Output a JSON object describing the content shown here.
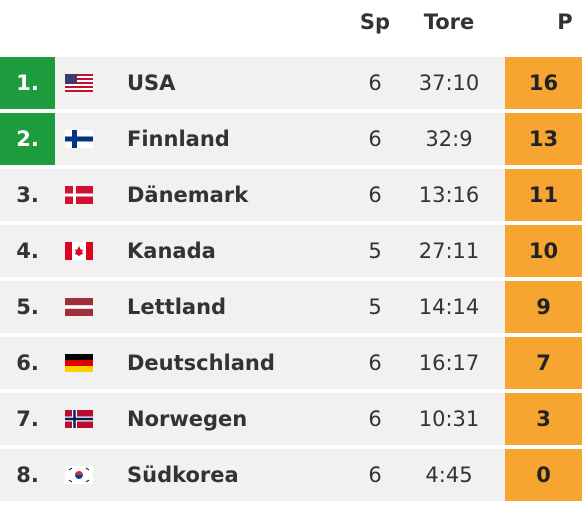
{
  "header": {
    "sp": "Sp",
    "tore": "Tore",
    "p": "P"
  },
  "table": {
    "rows": [
      {
        "rank": "1.",
        "country": "USA",
        "sp": 6,
        "tore": "37:10",
        "p": 16
      },
      {
        "rank": "2.",
        "country": "Finnland",
        "sp": 6,
        "tore": "32:9",
        "p": 13
      },
      {
        "rank": "3.",
        "country": "Dänemark",
        "sp": 6,
        "tore": "13:16",
        "p": 11
      },
      {
        "rank": "4.",
        "country": "Kanada",
        "sp": 5,
        "tore": "27:11",
        "p": 10
      },
      {
        "rank": "5.",
        "country": "Lettland",
        "sp": 5,
        "tore": "14:14",
        "p": 9
      },
      {
        "rank": "6.",
        "country": "Deutschland",
        "sp": 6,
        "tore": "16:17",
        "p": 7
      },
      {
        "rank": "7.",
        "country": "Norwegen",
        "sp": 6,
        "tore": "10:31",
        "p": 3
      },
      {
        "rank": "8.",
        "country": "Südkorea",
        "sp": 6,
        "tore": "4:45",
        "p": 0
      }
    ]
  }
}
